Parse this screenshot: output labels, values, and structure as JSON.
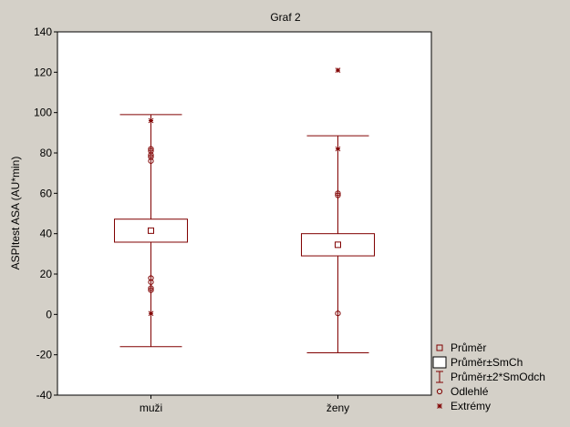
{
  "chart_data": {
    "type": "box",
    "title": "Graf 2",
    "xlabel": "",
    "ylabel": "ASPItest ASA (AU*min)",
    "ylim": [
      -40,
      140
    ],
    "yticks": [
      -40,
      -20,
      0,
      20,
      40,
      60,
      80,
      100,
      120,
      140
    ],
    "grid": false,
    "legend_position": "bottom-right",
    "categories": [
      "muži",
      "ženy"
    ],
    "boxes": [
      {
        "category": "muži",
        "mean": 41.5,
        "se_low": 35.8,
        "se_high": 47.2,
        "sd2_low": -16,
        "sd2_high": 99,
        "outliers": [
          82,
          81,
          79,
          78,
          76,
          18,
          16,
          13,
          12
        ],
        "extremes": [
          96,
          0.5
        ]
      },
      {
        "category": "ženy",
        "mean": 34.5,
        "se_low": 29,
        "se_high": 40,
        "sd2_low": -19,
        "sd2_high": 88.5,
        "outliers": [
          60,
          59,
          0.5
        ],
        "extremes": [
          121,
          82
        ]
      }
    ],
    "legend": [
      {
        "key": "mean",
        "label": "Průměr"
      },
      {
        "key": "se",
        "label": "Průměr±SmCh"
      },
      {
        "key": "sd2",
        "label": "Průměr±2*SmOdch"
      },
      {
        "key": "outlier",
        "label": "Odlehlé"
      },
      {
        "key": "extreme",
        "label": "Extrémy"
      }
    ],
    "colors": {
      "mark": "#800000",
      "plot_bg": "#ffffff",
      "frame_bg": "#d4d0c8"
    }
  }
}
